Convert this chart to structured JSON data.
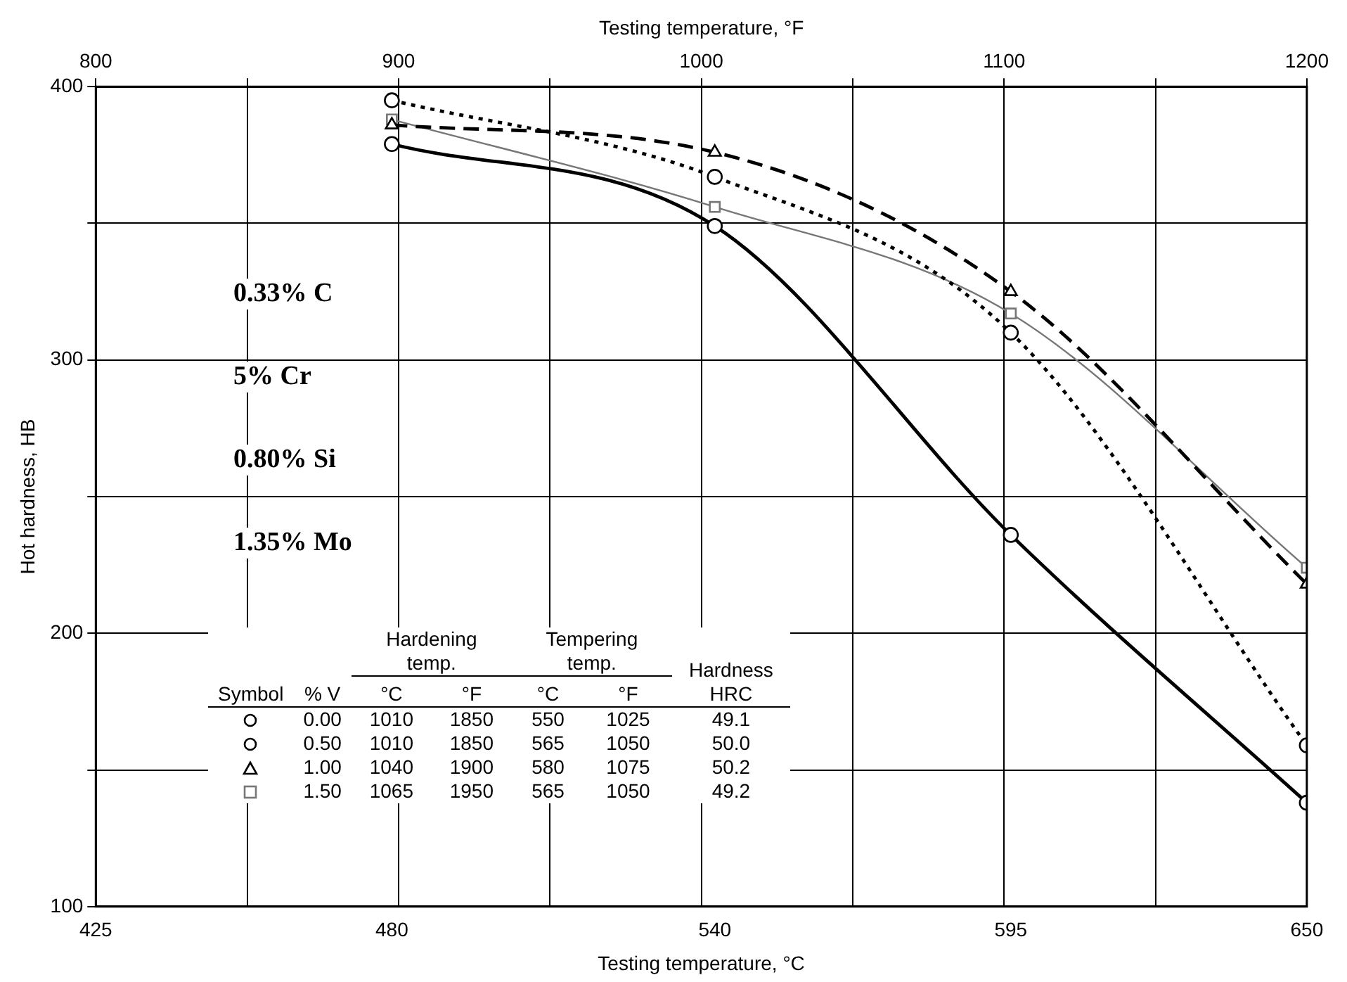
{
  "chart_data": {
    "type": "line",
    "xlabel": "Testing temperature, °C",
    "x2label": "Testing temperature, °F",
    "ylabel": "Hot hardness, HB",
    "x": [
      480,
      540,
      595,
      650
    ],
    "xlim": [
      425,
      650
    ],
    "xticks": [
      425,
      480,
      540,
      595,
      650
    ],
    "x2lim": [
      800,
      1200
    ],
    "x2ticks": [
      800,
      {
        "value": 850,
        "label": null
      },
      900,
      {
        "value": 950,
        "label": null
      },
      1000,
      {
        "value": 1050,
        "label": null
      },
      1100,
      {
        "value": 1150,
        "label": null
      },
      1200
    ],
    "ylim": [
      100,
      400
    ],
    "yticks": [
      100,
      {
        "value": 150,
        "label": null
      },
      200,
      {
        "value": 250,
        "label": null
      },
      300,
      {
        "value": 350,
        "label": null
      },
      400
    ],
    "grid": true,
    "legend": "bottom",
    "series": [
      {
        "name": "0.00",
        "color": "#000000",
        "marker": "circle",
        "line_style": "solid",
        "values": [
          379,
          349,
          236,
          138
        ]
      },
      {
        "name": "0.50",
        "color": "#000000",
        "marker": "circle",
        "line_style": "dotted",
        "values": [
          395,
          367,
          310,
          159
        ]
      },
      {
        "name": "1.00",
        "color": "#000000",
        "marker": "triangle",
        "line_style": "dashed",
        "values": [
          386,
          376,
          325,
          218
        ]
      },
      {
        "name": "1.50",
        "color": "#777777",
        "marker": "square",
        "line_style": "solid",
        "values": [
          388,
          356,
          317,
          224
        ]
      }
    ],
    "annotations": [
      "0.33% C",
      "5% Cr",
      "0.80% Si",
      "1.35% Mo",
      "Symbol",
      "% V",
      "Hardening temp.",
      "Tempering temp.",
      "°C",
      "°F",
      "°C",
      "°F",
      "Hardness HRC",
      "1010",
      "1850",
      "550",
      "1025",
      "49.1",
      "1010",
      "1850",
      "565",
      "1050",
      "50.0",
      "1040",
      "1900",
      "580",
      "1075",
      "50.2",
      "1065",
      "1950",
      "565",
      "1050",
      "49.2"
    ]
  }
}
